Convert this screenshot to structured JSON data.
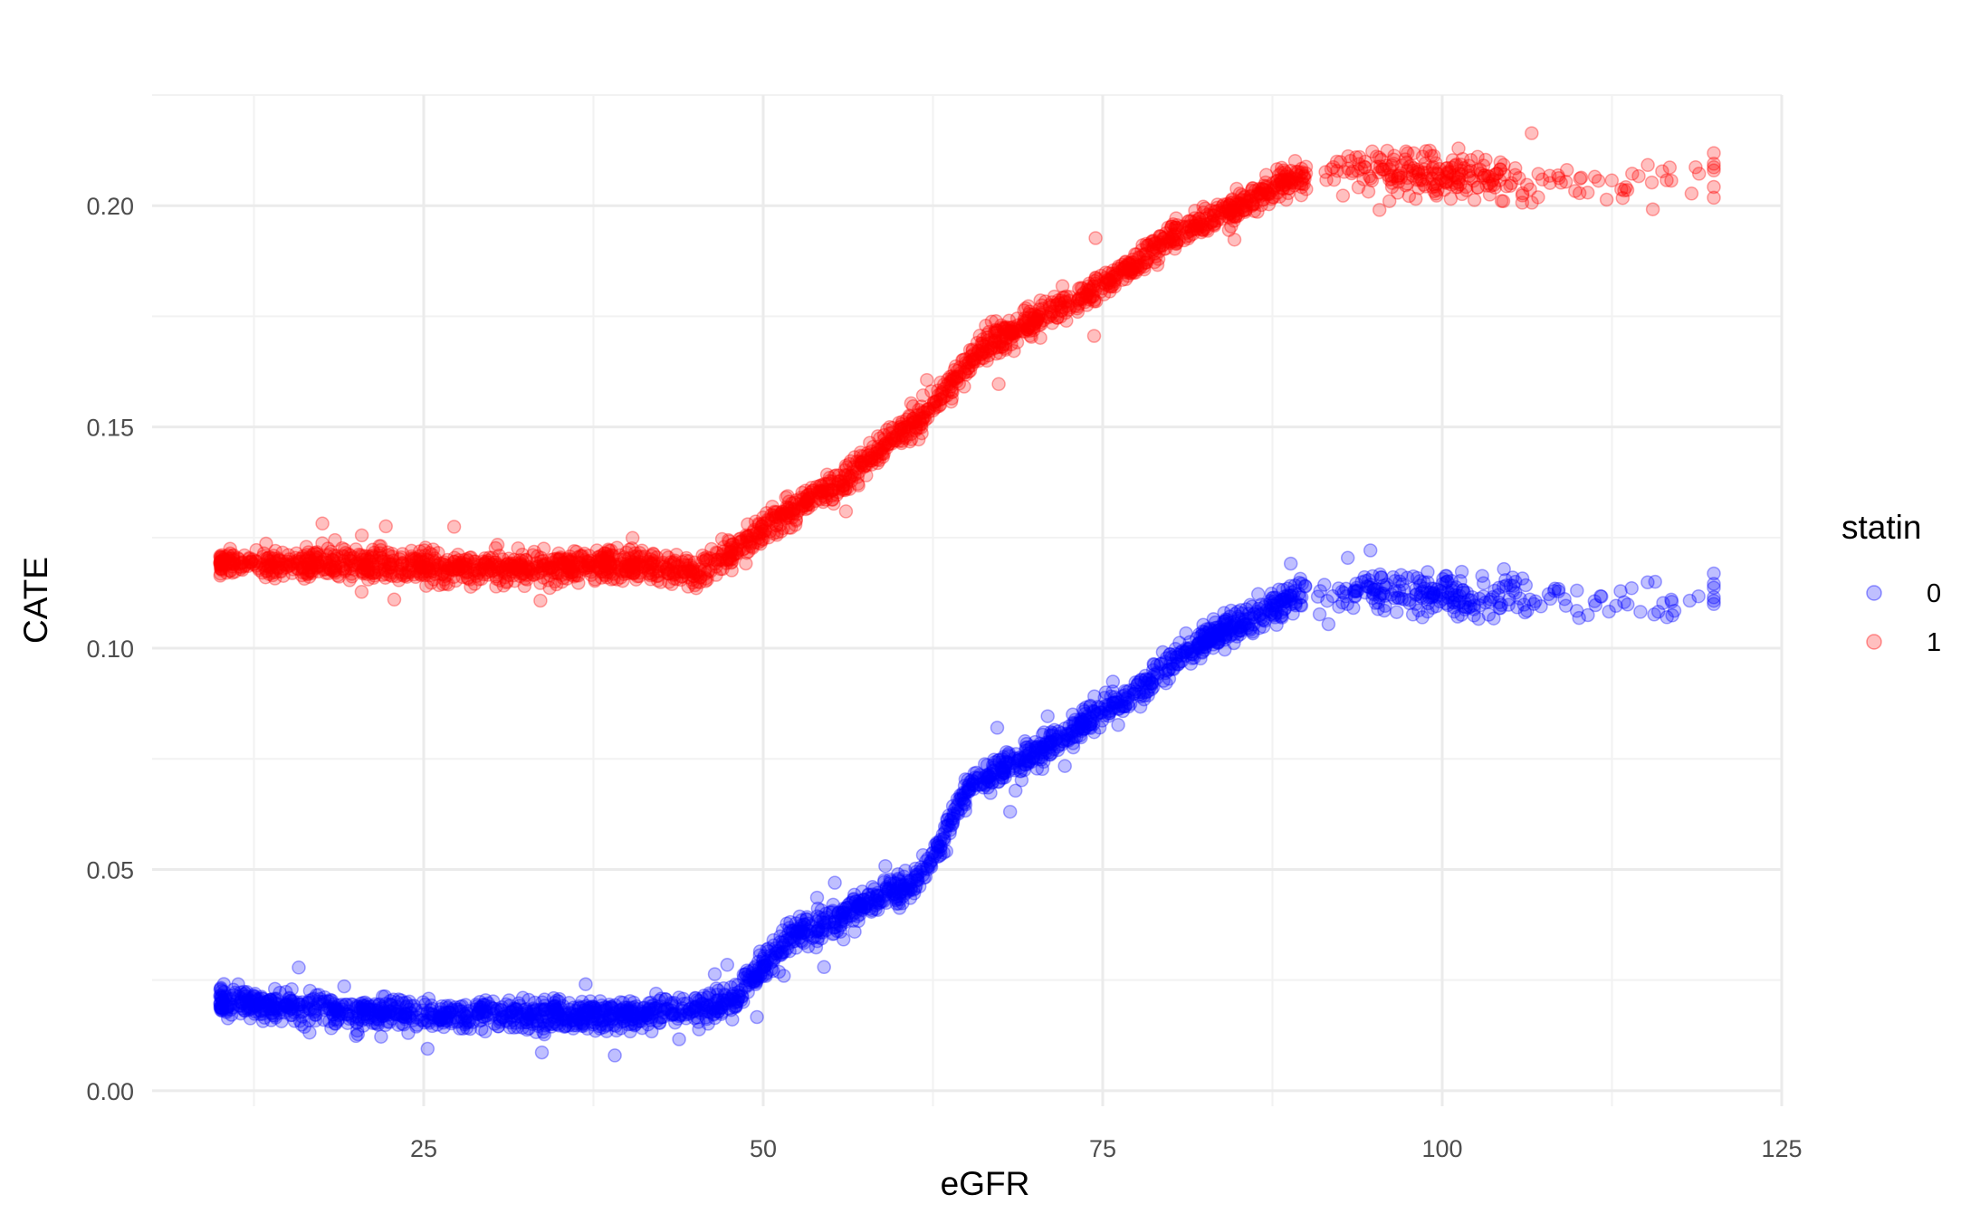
{
  "chart_data": {
    "type": "scatter",
    "title": "",
    "xlabel": "eGFR",
    "ylabel": "CATE",
    "xlim": [
      5,
      125
    ],
    "ylim": [
      -0.0035,
      0.225
    ],
    "x_ticks": [
      25,
      50,
      75,
      100,
      125
    ],
    "x_tick_labels": [
      "25",
      "50",
      "75",
      "100",
      "125"
    ],
    "y_ticks": [
      0.0,
      0.05,
      0.1,
      0.15,
      0.2
    ],
    "y_tick_labels": [
      "0.00",
      "0.05",
      "0.10",
      "0.15",
      "0.20"
    ],
    "grid": true,
    "legend": {
      "title": "statin",
      "position": "right",
      "entries": [
        "0",
        "1"
      ]
    },
    "point_alpha": 0.25,
    "series": [
      {
        "name": "0",
        "color": "#0000ff",
        "trend": [
          {
            "x": 10,
            "y": 0.02
          },
          {
            "x": 20,
            "y": 0.018
          },
          {
            "x": 30,
            "y": 0.017
          },
          {
            "x": 40,
            "y": 0.017
          },
          {
            "x": 46,
            "y": 0.019
          },
          {
            "x": 48,
            "y": 0.021
          },
          {
            "x": 50,
            "y": 0.029
          },
          {
            "x": 52,
            "y": 0.035
          },
          {
            "x": 55,
            "y": 0.038
          },
          {
            "x": 58,
            "y": 0.043
          },
          {
            "x": 61,
            "y": 0.047
          },
          {
            "x": 63,
            "y": 0.055
          },
          {
            "x": 65,
            "y": 0.068
          },
          {
            "x": 67,
            "y": 0.072
          },
          {
            "x": 70,
            "y": 0.076
          },
          {
            "x": 73,
            "y": 0.082
          },
          {
            "x": 76,
            "y": 0.087
          },
          {
            "x": 78,
            "y": 0.091
          },
          {
            "x": 81,
            "y": 0.099
          },
          {
            "x": 84,
            "y": 0.104
          },
          {
            "x": 87,
            "y": 0.108
          },
          {
            "x": 90,
            "y": 0.113
          },
          {
            "x": 95,
            "y": 0.113
          },
          {
            "x": 100,
            "y": 0.112
          },
          {
            "x": 110,
            "y": 0.111
          },
          {
            "x": 120,
            "y": 0.111
          }
        ]
      },
      {
        "name": "1",
        "color": "#ff0000",
        "trend": [
          {
            "x": 10,
            "y": 0.119
          },
          {
            "x": 20,
            "y": 0.119
          },
          {
            "x": 30,
            "y": 0.118
          },
          {
            "x": 40,
            "y": 0.119
          },
          {
            "x": 45,
            "y": 0.117
          },
          {
            "x": 47,
            "y": 0.12
          },
          {
            "x": 50,
            "y": 0.127
          },
          {
            "x": 53,
            "y": 0.133
          },
          {
            "x": 56,
            "y": 0.138
          },
          {
            "x": 59,
            "y": 0.146
          },
          {
            "x": 62,
            "y": 0.153
          },
          {
            "x": 64,
            "y": 0.16
          },
          {
            "x": 66,
            "y": 0.168
          },
          {
            "x": 70,
            "y": 0.174
          },
          {
            "x": 75,
            "y": 0.182
          },
          {
            "x": 80,
            "y": 0.193
          },
          {
            "x": 84,
            "y": 0.198
          },
          {
            "x": 88,
            "y": 0.205
          },
          {
            "x": 92,
            "y": 0.208
          },
          {
            "x": 100,
            "y": 0.207
          },
          {
            "x": 110,
            "y": 0.205
          },
          {
            "x": 120,
            "y": 0.205
          }
        ]
      }
    ]
  }
}
